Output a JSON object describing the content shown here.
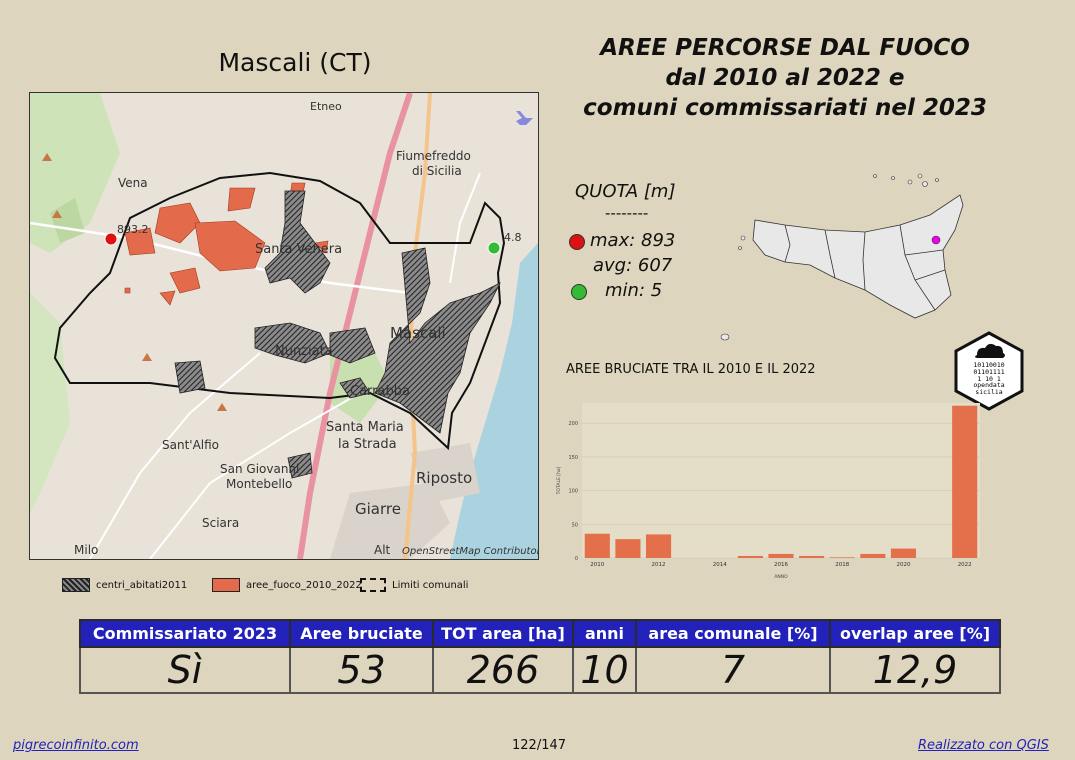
{
  "map_title": "Mascali (CT)",
  "main_title": [
    "AREE PERCORSE DAL FUOCO",
    "dal 2010 al 2022 e",
    "comuni commissariati nel 2023"
  ],
  "map": {
    "place_labels": [
      "Etneo",
      "Fiumefreddo",
      "di Sicilia",
      "Vena",
      "Santa Venera",
      "Mascali",
      "Nunziata",
      "Carrabba",
      "Santa Maria",
      "la Strada",
      "Sant'Alfio",
      "San Giovanni",
      "Montebello",
      "Riposto",
      "Giarre",
      "Sciara",
      "Milo",
      "Alt"
    ],
    "max_marker": "893.2",
    "min_marker": "4.8",
    "attribution": "OpenStreetMap Contributor"
  },
  "legend": {
    "centri": "centri_abitati2011",
    "fuoco": "aree_fuoco_2010_2022",
    "limiti": "Limiti comunali"
  },
  "colors": {
    "fire": "#e46a4c",
    "chart_bar": "#e4704b",
    "header": "#2222bb",
    "max": "#dd1111",
    "min": "#33bb33",
    "locator": "#ee00ee"
  },
  "quota": {
    "title": "QUOTA [m]",
    "separator": "--------",
    "max": "max: 893",
    "avg": "avg: 607",
    "min": "min: 5"
  },
  "chart_title": "AREE BRUCIATE TRA IL 2010 E IL 2022",
  "logo_text": [
    "10110010",
    "01101111",
    "1  10 1",
    "opendata",
    "sicilia"
  ],
  "chart_data": {
    "type": "bar",
    "title": "AREE BRUCIATE TRA IL 2010 E IL 2022",
    "xlabel": "ANNO",
    "ylabel": "TOTALE [ha]",
    "categories": [
      2010,
      2011,
      2012,
      2013,
      2014,
      2015,
      2016,
      2017,
      2018,
      2019,
      2020,
      2021,
      2022
    ],
    "values": [
      36,
      28,
      35,
      0,
      0,
      3,
      6,
      3,
      1,
      6,
      14,
      0,
      226
    ],
    "x_ticks": [
      "2010",
      "2012",
      "2014",
      "2016",
      "2018",
      "2020",
      "2022"
    ],
    "y_ticks": [
      "0",
      "50",
      "100",
      "150",
      "200"
    ],
    "ylim": [
      0,
      230
    ]
  },
  "table": {
    "headers": [
      "Commissariato 2023",
      "Aree bruciate",
      "TOT area [ha]",
      "anni",
      "area comunale [%]",
      "overlap aree [%]"
    ],
    "values": [
      "Sì",
      "53",
      "266",
      "10",
      "7",
      "12,9"
    ]
  },
  "footer": {
    "left": "pigrecoinfinito.com",
    "center": "122/147",
    "right": "Realizzato con QGIS"
  }
}
